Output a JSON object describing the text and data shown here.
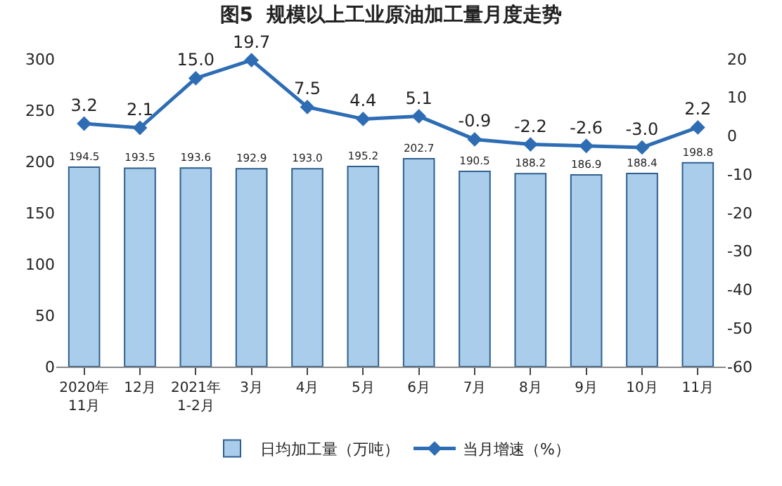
{
  "chart_data": {
    "type": "bar",
    "title": "图5  规模以上工业原油加工量月度走势",
    "categories": [
      "2020年\n11月",
      "12月",
      "2021年\n1-2月",
      "3月",
      "4月",
      "5月",
      "6月",
      "7月",
      "8月",
      "9月",
      "10月",
      "11月"
    ],
    "series": [
      {
        "name": "日均加工量（万吨）",
        "color": "#a9cdeb",
        "values": [
          194.5,
          193.5,
          193.6,
          192.9,
          193.0,
          195.2,
          202.7,
          190.5,
          188.2,
          186.9,
          188.4,
          198.8
        ],
        "value_labels": [
          "194.5",
          "193.5",
          "193.6",
          "192.9",
          "193.0",
          "195.2",
          "202.7",
          "190.5",
          "188.2",
          "186.9",
          "188.4",
          "198.8"
        ]
      },
      {
        "name": "当月增速（%）",
        "type": "line",
        "axis": "y2",
        "color": "#2e6db4",
        "marker": "diamond",
        "values": [
          3.2,
          2.1,
          15.0,
          19.7,
          7.5,
          4.4,
          5.1,
          -0.9,
          -2.2,
          -2.6,
          -3.0,
          2.2
        ],
        "value_labels": [
          "3.2",
          "2.1",
          "15.0",
          "19.7",
          "7.5",
          "4.4",
          "5.1",
          "-0.9",
          "-2.2",
          "-2.6",
          "-3.0",
          "2.2"
        ]
      }
    ],
    "ylim": [
      0,
      300
    ],
    "yticks": [
      0,
      50,
      100,
      150,
      200,
      250,
      300
    ],
    "y2lim": [
      -60,
      20
    ],
    "y2ticks": [
      -60,
      -50,
      -40,
      -30,
      -20,
      -10,
      0,
      10,
      20
    ],
    "legend": "bottom"
  }
}
